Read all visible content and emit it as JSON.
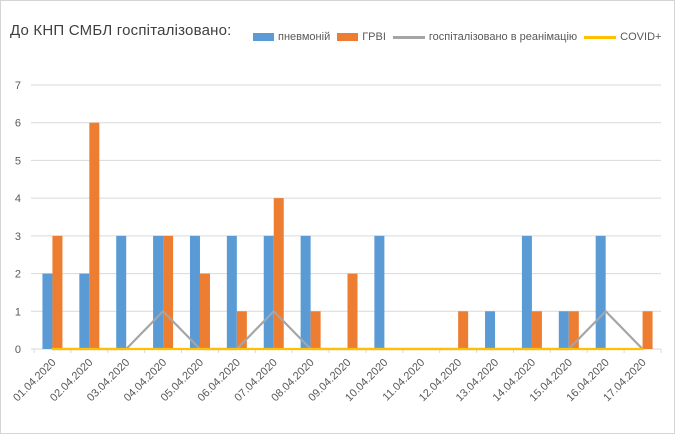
{
  "title": "До КНП СМБЛ госпіталізовано:",
  "legend": {
    "items": [
      {
        "label": "пневмоній",
        "color": "#5B9BD5",
        "marker": "bar"
      },
      {
        "label": "ГРВІ",
        "color": "#ED7D31",
        "marker": "bar"
      },
      {
        "label": "госпіталізовано в реанімацію",
        "color": "#A5A5A5",
        "marker": "line"
      },
      {
        "label": "COVID+",
        "color": "#FFC000",
        "marker": "line"
      }
    ]
  },
  "chart_data": {
    "type": "bar",
    "title": "До КНП СМБЛ госпіталізовано:",
    "categories": [
      "01.04.2020",
      "02.04.2020",
      "03.04.2020",
      "04.04.2020",
      "05.04.2020",
      "06.04.2020",
      "07.04.2020",
      "08.04.2020",
      "09.04.2020",
      "10.04.2020",
      "11.04.2020",
      "12.04.2020",
      "13.04.2020",
      "14.04.2020",
      "15.04.2020",
      "16.04.2020",
      "17.04.2020"
    ],
    "series": [
      {
        "name": "пневмоній",
        "type": "bar",
        "color": "#5B9BD5",
        "values": [
          2,
          2,
          3,
          3,
          3,
          3,
          3,
          3,
          0,
          3,
          0,
          0,
          1,
          3,
          1,
          3,
          0
        ]
      },
      {
        "name": "ГРВІ",
        "type": "bar",
        "color": "#ED7D31",
        "values": [
          3,
          6,
          0,
          3,
          2,
          1,
          4,
          1,
          2,
          0,
          0,
          1,
          0,
          1,
          1,
          0,
          1
        ]
      },
      {
        "name": "госпіталізовано в реанімацію",
        "type": "line",
        "color": "#A5A5A5",
        "values": [
          0,
          0,
          0,
          1,
          0,
          0,
          1,
          0,
          0,
          0,
          0,
          0,
          0,
          0,
          0,
          1,
          0
        ]
      },
      {
        "name": "COVID+",
        "type": "line",
        "color": "#FFC000",
        "values": [
          0,
          0,
          0,
          0,
          0,
          0,
          0,
          0,
          0,
          0,
          0,
          0,
          0,
          0,
          0,
          0,
          0
        ]
      }
    ],
    "xlabel": "",
    "ylabel": "",
    "ylim": [
      0,
      7
    ],
    "yticks": [
      0,
      1,
      2,
      3,
      4,
      5,
      6,
      7
    ],
    "grid": true,
    "gridline_color": "#D9D9D9",
    "tick_label_color": "#595959",
    "legend_position": "top"
  }
}
